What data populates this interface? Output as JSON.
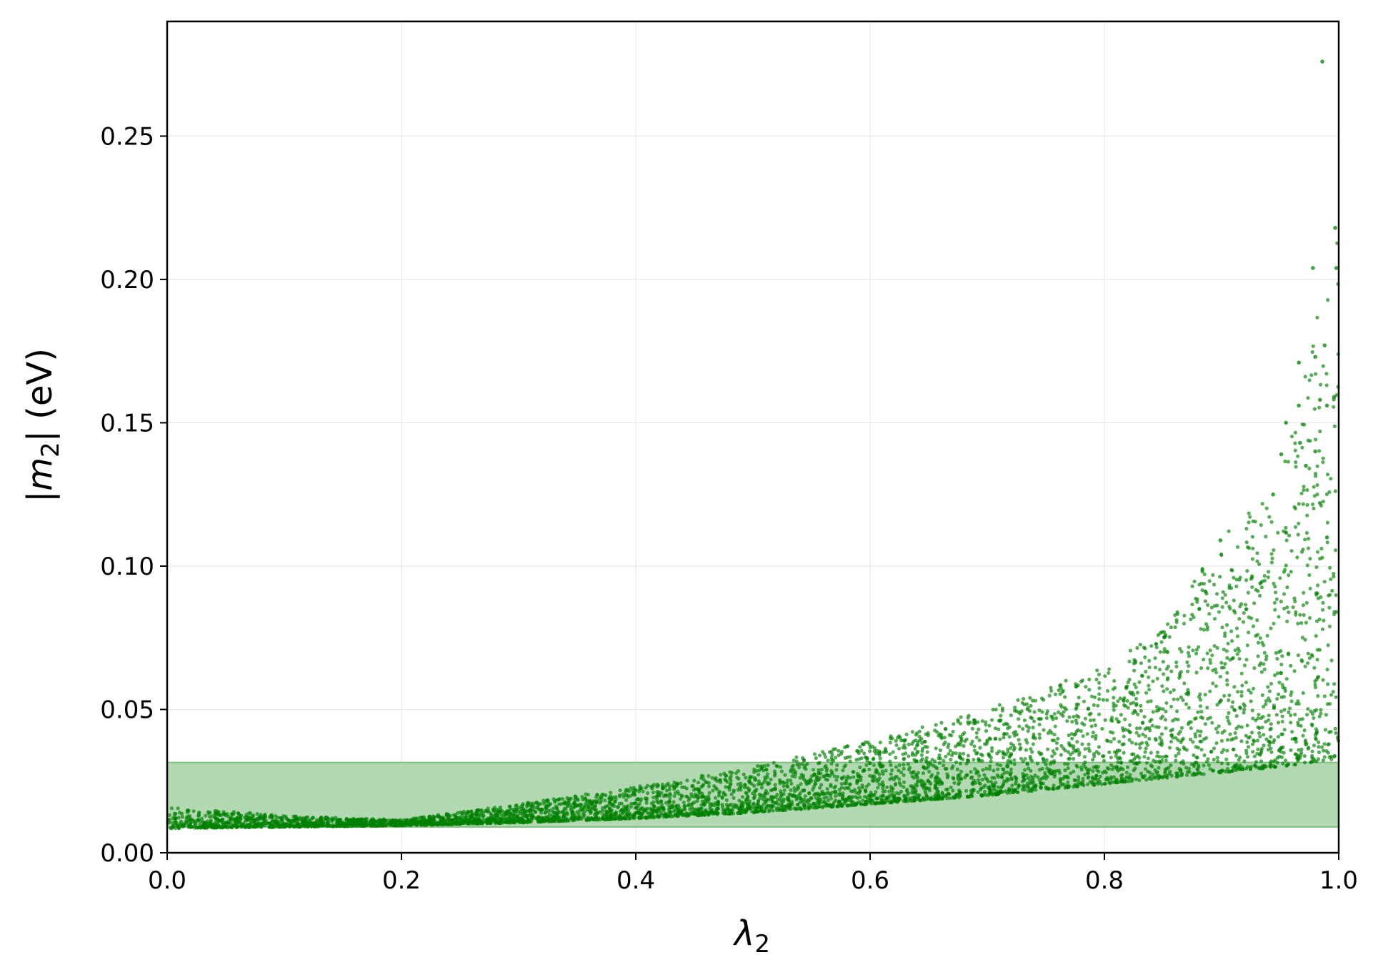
{
  "chart_data": {
    "type": "scatter",
    "title": "",
    "xlabel": {
      "main": "λ",
      "sub": "2"
    },
    "ylabel": {
      "prefix": "|",
      "main": "m",
      "sub": "2",
      "suffix": "| (eV)"
    },
    "xlim": [
      0.0,
      1.0
    ],
    "ylim": [
      0.0,
      0.29
    ],
    "xticks": [
      0.0,
      0.2,
      0.4,
      0.6,
      0.8,
      1.0
    ],
    "xtick_labels": [
      "0.0",
      "0.2",
      "0.4",
      "0.6",
      "0.8",
      "1.0"
    ],
    "yticks": [
      0.0,
      0.05,
      0.1,
      0.15,
      0.2,
      0.25
    ],
    "ytick_labels": [
      "0.00",
      "0.05",
      "0.10",
      "0.15",
      "0.20",
      "0.25"
    ],
    "grid": true,
    "colors": {
      "points": "#008000",
      "band_fill": "#b3d9b3",
      "band_edge": "#7fbf7f",
      "grid": "#e8e8e8"
    },
    "band": {
      "y_min": 0.009,
      "y_max": 0.0315
    },
    "series_envelope": {
      "x": [
        0.0,
        0.1,
        0.2,
        0.3,
        0.4,
        0.5,
        0.6,
        0.7,
        0.8,
        0.85,
        0.9,
        0.95,
        1.0
      ],
      "lower": [
        0.0085,
        0.009,
        0.0095,
        0.0105,
        0.012,
        0.014,
        0.017,
        0.02,
        0.024,
        0.026,
        0.028,
        0.03,
        0.033
      ],
      "upper": [
        0.016,
        0.013,
        0.0115,
        0.017,
        0.023,
        0.03,
        0.039,
        0.05,
        0.065,
        0.078,
        0.11,
        0.13,
        0.22
      ]
    },
    "outliers": [
      {
        "x": 0.986,
        "y": 0.276
      },
      {
        "x": 0.997,
        "y": 0.218
      },
      {
        "x": 0.998,
        "y": 0.204
      },
      {
        "x": 0.978,
        "y": 0.204
      },
      {
        "x": 0.988,
        "y": 0.177
      },
      {
        "x": 0.98,
        "y": 0.173
      },
      {
        "x": 0.966,
        "y": 0.171
      },
      {
        "x": 0.996,
        "y": 0.159
      },
      {
        "x": 0.984,
        "y": 0.158
      },
      {
        "x": 0.966,
        "y": 0.156
      },
      {
        "x": 0.99,
        "y": 0.156
      },
      {
        "x": 0.955,
        "y": 0.15
      },
      {
        "x": 0.967,
        "y": 0.143
      },
      {
        "x": 0.98,
        "y": 0.14
      },
      {
        "x": 0.951,
        "y": 0.139
      },
      {
        "x": 0.972,
        "y": 0.135
      },
      {
        "x": 0.944,
        "y": 0.125
      },
      {
        "x": 0.984,
        "y": 0.122
      },
      {
        "x": 0.99,
        "y": 0.11
      },
      {
        "x": 0.899,
        "y": 0.109
      }
    ]
  }
}
